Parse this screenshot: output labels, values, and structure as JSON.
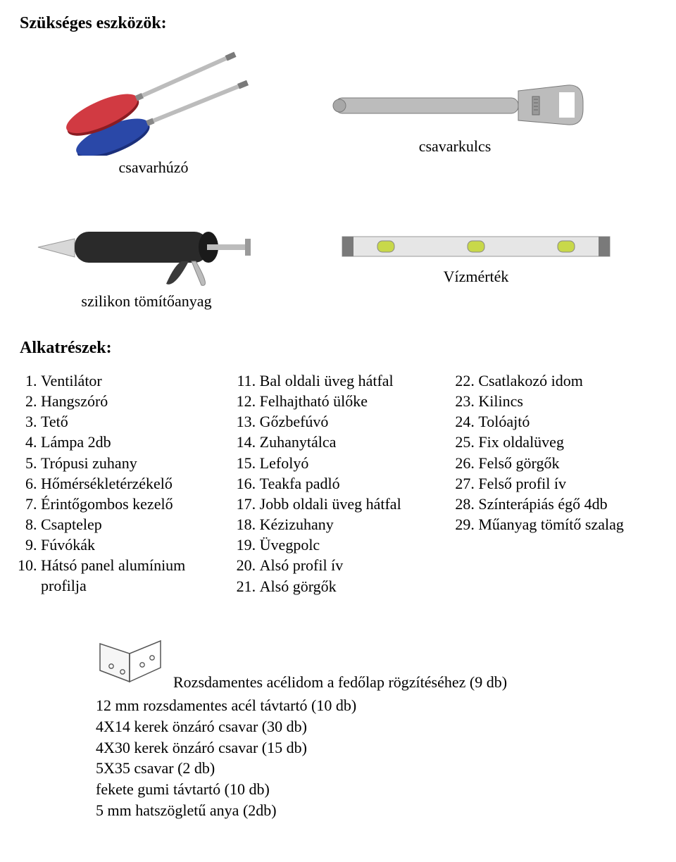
{
  "headings": {
    "tools": "Szükséges eszközök:",
    "parts": "Alkatrészek:"
  },
  "tools": {
    "screwdriver": "csavarhúzó",
    "wrench": "csavarkulcs",
    "silicone": "szilikon tömítőanyag",
    "level": "Vízmérték"
  },
  "parts": {
    "col1": [
      "Ventilátor",
      "Hangszóró",
      "Tető",
      "Lámpa 2db",
      "Trópusi zuhany",
      "Hőmérsékletérzékelő",
      "Érintőgombos kezelő",
      "Csaptelep",
      "Fúvókák",
      "Hátsó panel alumínium profilja"
    ],
    "col2": [
      "Bal oldali üveg hátfal",
      "Felhajtható ülőke",
      "Gőzbefúvó",
      "Zuhanytálca",
      "Lefolyó",
      "Teakfa padló",
      "Jobb oldali üveg hátfal",
      "Kézizuhany",
      "Üvegpolc",
      "Alsó profil ív",
      "Alsó görgők"
    ],
    "col3": [
      "Csatlakozó idom",
      "Kilincs",
      "Tolóajtó",
      "Fix oldalüveg",
      "Felső görgők",
      "Felső profil ív",
      "Színterápiás égő 4db",
      "Műanyag tömítő szalag"
    ],
    "starts": {
      "col1": 1,
      "col2": 11,
      "col3": 22
    }
  },
  "hardware": {
    "bracket_line": "Rozsdamentes acélidom a fedőlap rögzítéséhez (9 db)",
    "lines": [
      "12 mm rozsdamentes acél távtartó (10 db)",
      "4X14 kerek önzáró csavar (30 db)",
      "4X30 kerek önzáró csavar (15 db)",
      "5X35 csavar (2 db)",
      "fekete gumi távtartó (10 db)",
      "5 mm hatszögletű anya (2db)"
    ]
  },
  "colors": {
    "screwdriver_red": "#c22832",
    "screwdriver_blue": "#1b2f7a",
    "metal": "#bcbcbc",
    "metal_dark": "#7a7a7a",
    "caulk_body": "#2a2a2a",
    "caulk_tip": "#dcdcdc",
    "level_body": "#e6e6e6",
    "level_end": "#7a7a7a",
    "level_vial": "#c8d84a"
  }
}
